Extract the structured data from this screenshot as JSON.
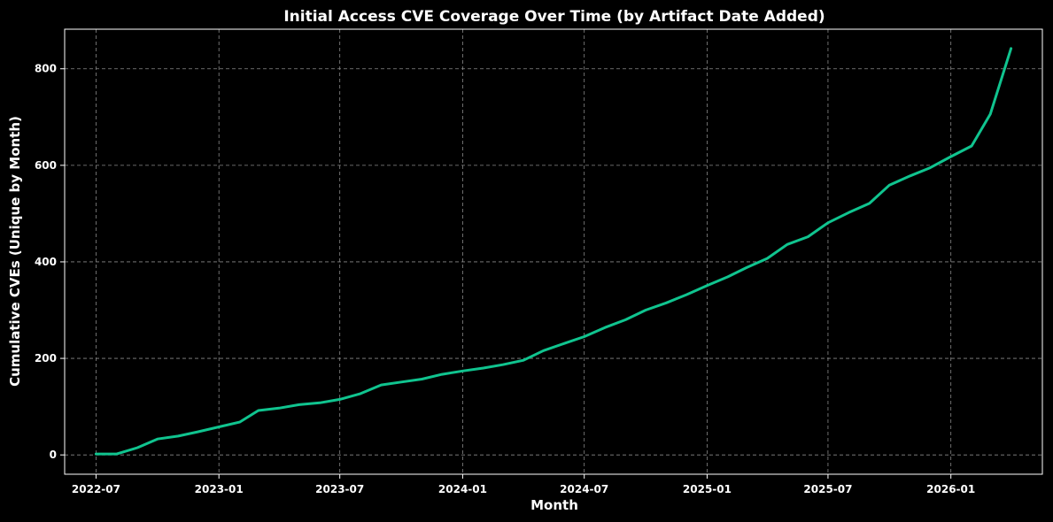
{
  "chart_data": {
    "type": "line",
    "title": "Initial Access CVE Coverage Over Time (by Artifact Date Added)",
    "xlabel": "Month",
    "ylabel": "Cumulative CVEs (Unique by Month)",
    "grid": true,
    "ylim": [
      -40,
      882
    ],
    "xlim": [
      "2022-05-15",
      "2026-05-18"
    ],
    "x_ticks": [
      "2022-07",
      "2023-01",
      "2023-07",
      "2024-01",
      "2024-07",
      "2025-01",
      "2025-07",
      "2026-01"
    ],
    "y_ticks": [
      0,
      200,
      400,
      600,
      800
    ],
    "series": [
      {
        "color": "#10c48f",
        "x": [
          "2022-07",
          "2022-08",
          "2022-09",
          "2022-10",
          "2022-11",
          "2022-12",
          "2023-01",
          "2023-02",
          "2023-03",
          "2023-04",
          "2023-05",
          "2023-06",
          "2023-07",
          "2023-08",
          "2023-09",
          "2023-10",
          "2023-11",
          "2023-12",
          "2024-01",
          "2024-02",
          "2024-03",
          "2024-04",
          "2024-05",
          "2024-06",
          "2024-07",
          "2024-08",
          "2024-09",
          "2024-10",
          "2024-11",
          "2024-12",
          "2025-01",
          "2025-02",
          "2025-03",
          "2025-04",
          "2025-05",
          "2025-06",
          "2025-07",
          "2025-08",
          "2025-09",
          "2025-10",
          "2025-11",
          "2025-12",
          "2026-01",
          "2026-02",
          "2026-03",
          "2026-04"
        ],
        "values": [
          2,
          2,
          15,
          33,
          39,
          48,
          58,
          68,
          92,
          97,
          104,
          108,
          115,
          127,
          145,
          151,
          157,
          167,
          174,
          180,
          187,
          196,
          216,
          231,
          245,
          264,
          280,
          300,
          315,
          332,
          351,
          369,
          388,
          407,
          436,
          452,
          481,
          502,
          521,
          559,
          578,
          595,
          618,
          640,
          706,
          842
        ]
      }
    ]
  }
}
